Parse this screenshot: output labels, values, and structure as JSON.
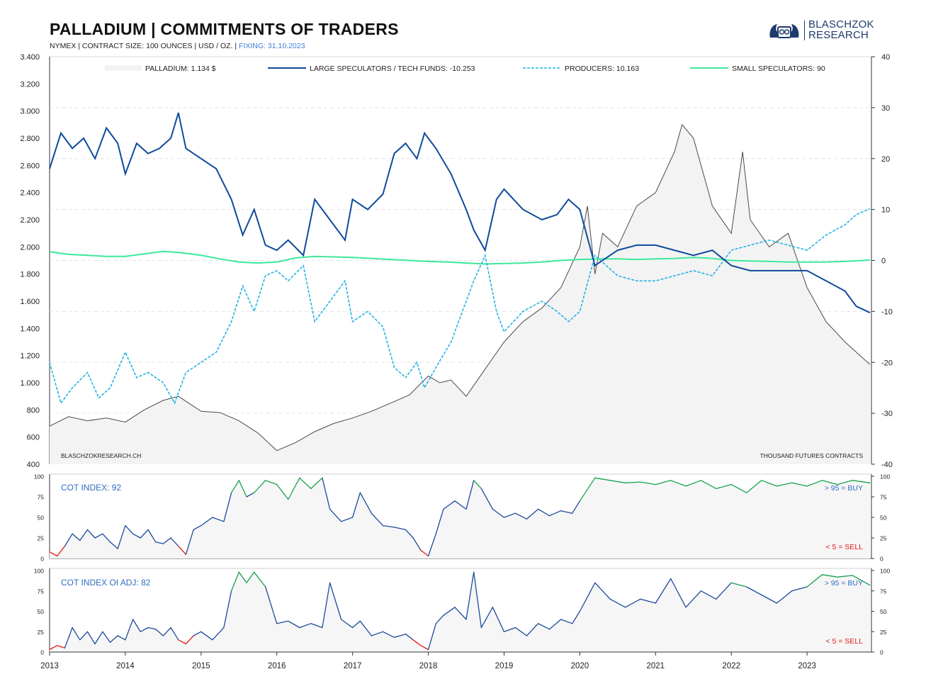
{
  "header": {
    "title": "PALLADIUM  |  COMMITMENTS OF TRADERS",
    "subtitle_main": "NYMEX | CONTRACT SIZE: 100 OUNCES | USD / OZ. |",
    "subtitle_fixing": "FIXING: 31.10.2023"
  },
  "logo": {
    "line1": "BLASCHZOK",
    "line2": "RESEARCH",
    "icon": "lions-crest-icon"
  },
  "colors": {
    "price": "#4a4a4a",
    "price_fill": "#f3f3f3",
    "large": "#0f4a9c",
    "producers": "#22b3e4",
    "small": "#3de89a",
    "cot_normal": "#1d4a9c",
    "cot_high": "#16a24a",
    "cot_low": "#e01b1b",
    "label_blue": "#2f6dc4",
    "label_red": "#e01b1b"
  },
  "chart_data": [
    {
      "type": "line",
      "panel": "main",
      "x_tick_labels": [
        "2013",
        "2014",
        "2015",
        "2016",
        "2017",
        "2018",
        "2019",
        "2020",
        "2021",
        "2022",
        "2023"
      ],
      "y_left_ticks": [
        "400",
        "600",
        "800",
        "1.000",
        "1.200",
        "1.400",
        "1.600",
        "1.800",
        "2.000",
        "2.200",
        "2.400",
        "2.600",
        "2.800",
        "3.000",
        "3.200",
        "3.400"
      ],
      "y_left_lim": [
        400,
        3400
      ],
      "y_right_ticks": [
        "-40",
        "-30",
        "-20",
        "-10",
        "0",
        "10",
        "20",
        "30",
        "40"
      ],
      "y_right_lim": [
        -40,
        40
      ],
      "grid": "horizontal dashed",
      "legend_position": "top",
      "legend": [
        {
          "label": "PALLADIUM: 1.134 $",
          "style": "fill"
        },
        {
          "label": "LARGE SPECULATORS / TECH FUNDS: -10.253",
          "style": "solid"
        },
        {
          "label": "PRODUCERS: 10.163",
          "style": "dashed"
        },
        {
          "label": "SMALL SPECULATORS: 90",
          "style": "solid-light"
        }
      ],
      "watermark": "BLASCHZOKRESEARCH.CH",
      "right_axis_label": "THOUSAND  FUTURES CONTRACTS",
      "series": [
        {
          "name": "PALLADIUM",
          "axis": "left",
          "x": [
            2013.0,
            2013.25,
            2013.5,
            2013.75,
            2014.0,
            2014.25,
            2014.5,
            2014.7,
            2015.0,
            2015.25,
            2015.5,
            2015.75,
            2016.0,
            2016.25,
            2016.5,
            2016.75,
            2017.0,
            2017.25,
            2017.5,
            2017.75,
            2018.0,
            2018.15,
            2018.3,
            2018.5,
            2018.75,
            2019.0,
            2019.25,
            2019.5,
            2019.75,
            2020.0,
            2020.1,
            2020.2,
            2020.3,
            2020.5,
            2020.75,
            2021.0,
            2021.25,
            2021.35,
            2021.5,
            2021.75,
            2022.0,
            2022.15,
            2022.25,
            2022.5,
            2022.75,
            2023.0,
            2023.25,
            2023.5,
            2023.83
          ],
          "values": [
            680,
            750,
            720,
            740,
            710,
            800,
            870,
            900,
            790,
            780,
            720,
            630,
            500,
            560,
            640,
            700,
            740,
            790,
            850,
            910,
            1050,
            1000,
            1020,
            900,
            1100,
            1300,
            1450,
            1550,
            1700,
            2000,
            2300,
            1800,
            2100,
            2000,
            2300,
            2400,
            2700,
            2900,
            2800,
            2300,
            2100,
            2700,
            2200,
            2000,
            2100,
            1700,
            1450,
            1300,
            1134
          ]
        },
        {
          "name": "LARGE SPECULATORS / TECH FUNDS",
          "axis": "right",
          "x": [
            2013.0,
            2013.15,
            2013.3,
            2013.45,
            2013.6,
            2013.75,
            2013.9,
            2014.0,
            2014.15,
            2014.3,
            2014.45,
            2014.6,
            2014.7,
            2014.8,
            2015.0,
            2015.2,
            2015.4,
            2015.55,
            2015.7,
            2015.85,
            2016.0,
            2016.15,
            2016.35,
            2016.5,
            2016.7,
            2016.9,
            2017.0,
            2017.2,
            2017.4,
            2017.55,
            2017.7,
            2017.85,
            2017.95,
            2018.1,
            2018.3,
            2018.5,
            2018.6,
            2018.75,
            2018.9,
            2019.0,
            2019.25,
            2019.5,
            2019.7,
            2019.85,
            2020.0,
            2020.2,
            2020.5,
            2020.75,
            2021.0,
            2021.25,
            2021.5,
            2021.75,
            2022.0,
            2022.25,
            2022.5,
            2022.75,
            2023.0,
            2023.25,
            2023.5,
            2023.65,
            2023.83
          ],
          "values": [
            18,
            25,
            22,
            24,
            20,
            26,
            23,
            17,
            23,
            21,
            22,
            24,
            29,
            22,
            20,
            18,
            12,
            5,
            10,
            3,
            2,
            4,
            1,
            12,
            8,
            4,
            12,
            10,
            13,
            21,
            23,
            20,
            25,
            22,
            17,
            10,
            6,
            2,
            12,
            14,
            10,
            8,
            9,
            12,
            10,
            -1,
            2,
            3,
            3,
            2,
            1,
            2,
            -1,
            -2,
            -2,
            -2,
            -2,
            -4,
            -6,
            -9,
            -10.253
          ]
        },
        {
          "name": "PRODUCERS",
          "axis": "right",
          "x": [
            2013.0,
            2013.15,
            2013.3,
            2013.5,
            2013.65,
            2013.8,
            2014.0,
            2014.15,
            2014.3,
            2014.5,
            2014.65,
            2014.8,
            2015.0,
            2015.2,
            2015.4,
            2015.55,
            2015.7,
            2015.85,
            2016.0,
            2016.15,
            2016.35,
            2016.5,
            2016.7,
            2016.9,
            2017.0,
            2017.2,
            2017.4,
            2017.55,
            2017.7,
            2017.85,
            2017.95,
            2018.1,
            2018.3,
            2018.5,
            2018.6,
            2018.75,
            2018.9,
            2019.0,
            2019.25,
            2019.5,
            2019.7,
            2019.85,
            2020.0,
            2020.2,
            2020.5,
            2020.75,
            2021.0,
            2021.25,
            2021.5,
            2021.75,
            2022.0,
            2022.25,
            2022.5,
            2022.75,
            2023.0,
            2023.25,
            2023.5,
            2023.65,
            2023.83
          ],
          "values": [
            -20,
            -28,
            -25,
            -22,
            -27,
            -25,
            -18,
            -23,
            -22,
            -24,
            -28,
            -22,
            -20,
            -18,
            -12,
            -5,
            -10,
            -3,
            -2,
            -4,
            -1,
            -12,
            -8,
            -4,
            -12,
            -10,
            -13,
            -21,
            -23,
            -20,
            -25,
            -21,
            -16,
            -8,
            -4,
            1,
            -10,
            -14,
            -10,
            -8,
            -10,
            -12,
            -10,
            1,
            -3,
            -4,
            -4,
            -3,
            -2,
            -3,
            2,
            3,
            4,
            3,
            2,
            5,
            7,
            9,
            10.163
          ]
        },
        {
          "name": "SMALL SPECULATORS",
          "axis": "right",
          "x": [
            2013.0,
            2013.25,
            2013.5,
            2013.75,
            2014.0,
            2014.25,
            2014.5,
            2014.75,
            2015.0,
            2015.25,
            2015.5,
            2015.75,
            2016.0,
            2016.25,
            2016.5,
            2016.75,
            2017.0,
            2017.25,
            2017.5,
            2017.75,
            2018.0,
            2018.25,
            2018.5,
            2018.75,
            2019.0,
            2019.25,
            2019.5,
            2019.75,
            2020.0,
            2020.25,
            2020.5,
            2020.75,
            2021.0,
            2021.25,
            2021.5,
            2021.75,
            2022.0,
            2022.25,
            2022.5,
            2022.75,
            2023.0,
            2023.25,
            2023.5,
            2023.83
          ],
          "values": [
            1.7,
            1.2,
            1.0,
            0.8,
            0.8,
            1.3,
            1.8,
            1.5,
            1.0,
            0.3,
            -0.3,
            -0.5,
            -0.3,
            0.5,
            0.8,
            0.7,
            0.6,
            0.4,
            0.2,
            0.0,
            -0.2,
            -0.3,
            -0.5,
            -0.7,
            -0.6,
            -0.5,
            -0.3,
            0.0,
            0.2,
            0.3,
            0.3,
            0.2,
            0.3,
            0.4,
            0.6,
            0.4,
            0.0,
            -0.1,
            -0.2,
            -0.3,
            -0.3,
            -0.3,
            -0.2,
            0.09
          ]
        }
      ]
    },
    {
      "type": "line",
      "panel": "cot_index",
      "label": "COT INDEX: 92",
      "buy_label": "> 95 = BUY",
      "sell_label": "< 5 = SELL",
      "y_ticks": [
        "0",
        "25",
        "50",
        "75",
        "100"
      ],
      "ylim": [
        0,
        100
      ],
      "series": [
        {
          "name": "COT INDEX",
          "x": [
            2013.0,
            2013.1,
            2013.2,
            2013.3,
            2013.4,
            2013.5,
            2013.6,
            2013.7,
            2013.8,
            2013.9,
            2014.0,
            2014.1,
            2014.2,
            2014.3,
            2014.4,
            2014.5,
            2014.6,
            2014.7,
            2014.8,
            2014.9,
            2015.0,
            2015.15,
            2015.3,
            2015.4,
            2015.5,
            2015.6,
            2015.7,
            2015.85,
            2016.0,
            2016.15,
            2016.3,
            2016.45,
            2016.6,
            2016.7,
            2016.85,
            2017.0,
            2017.1,
            2017.25,
            2017.4,
            2017.55,
            2017.7,
            2017.8,
            2017.9,
            2018.0,
            2018.1,
            2018.2,
            2018.35,
            2018.5,
            2018.6,
            2018.7,
            2018.85,
            2019.0,
            2019.15,
            2019.3,
            2019.45,
            2019.6,
            2019.75,
            2019.9,
            2020.0,
            2020.2,
            2020.4,
            2020.6,
            2020.8,
            2021.0,
            2021.2,
            2021.4,
            2021.6,
            2021.8,
            2022.0,
            2022.2,
            2022.4,
            2022.6,
            2022.8,
            2023.0,
            2023.2,
            2023.4,
            2023.6,
            2023.83
          ],
          "values": [
            8,
            3,
            15,
            30,
            22,
            35,
            25,
            30,
            20,
            12,
            40,
            30,
            25,
            35,
            20,
            18,
            25,
            15,
            5,
            35,
            40,
            50,
            45,
            80,
            95,
            75,
            80,
            95,
            90,
            72,
            98,
            85,
            98,
            60,
            45,
            50,
            80,
            55,
            40,
            38,
            35,
            25,
            10,
            3,
            30,
            60,
            70,
            60,
            95,
            85,
            60,
            50,
            55,
            48,
            60,
            52,
            58,
            55,
            70,
            98,
            95,
            92,
            93,
            90,
            95,
            88,
            95,
            85,
            90,
            80,
            95,
            88,
            92,
            88,
            95,
            90,
            95,
            92
          ]
        }
      ]
    },
    {
      "type": "line",
      "panel": "cot_index_oi_adj",
      "label": "COT INDEX OI ADJ: 82",
      "buy_label": "> 95 = BUY",
      "sell_label": "< 5 = SELL",
      "y_ticks": [
        "0",
        "25",
        "50",
        "75",
        "100"
      ],
      "ylim": [
        0,
        100
      ],
      "series": [
        {
          "name": "COT INDEX OI ADJ",
          "x": [
            2013.0,
            2013.1,
            2013.2,
            2013.3,
            2013.4,
            2013.5,
            2013.6,
            2013.7,
            2013.8,
            2013.9,
            2014.0,
            2014.1,
            2014.2,
            2014.3,
            2014.4,
            2014.5,
            2014.6,
            2014.7,
            2014.8,
            2014.9,
            2015.0,
            2015.15,
            2015.3,
            2015.4,
            2015.5,
            2015.6,
            2015.7,
            2015.85,
            2016.0,
            2016.15,
            2016.3,
            2016.45,
            2016.6,
            2016.7,
            2016.85,
            2017.0,
            2017.1,
            2017.25,
            2017.4,
            2017.55,
            2017.7,
            2017.8,
            2017.9,
            2018.0,
            2018.1,
            2018.2,
            2018.35,
            2018.5,
            2018.6,
            2018.7,
            2018.85,
            2019.0,
            2019.15,
            2019.3,
            2019.45,
            2019.6,
            2019.75,
            2019.9,
            2020.0,
            2020.2,
            2020.4,
            2020.6,
            2020.8,
            2021.0,
            2021.2,
            2021.4,
            2021.6,
            2021.8,
            2022.0,
            2022.2,
            2022.4,
            2022.6,
            2022.8,
            2023.0,
            2023.2,
            2023.4,
            2023.6,
            2023.83
          ],
          "values": [
            3,
            8,
            5,
            30,
            15,
            25,
            10,
            25,
            12,
            20,
            15,
            40,
            25,
            30,
            28,
            20,
            30,
            15,
            10,
            20,
            25,
            15,
            30,
            75,
            98,
            85,
            98,
            80,
            35,
            38,
            30,
            35,
            30,
            85,
            40,
            30,
            38,
            20,
            25,
            18,
            22,
            15,
            8,
            3,
            35,
            45,
            55,
            40,
            98,
            30,
            55,
            25,
            30,
            20,
            35,
            28,
            40,
            35,
            50,
            85,
            65,
            55,
            65,
            60,
            90,
            55,
            75,
            65,
            85,
            80,
            70,
            60,
            75,
            80,
            95,
            92,
            94,
            82
          ]
        }
      ]
    }
  ]
}
